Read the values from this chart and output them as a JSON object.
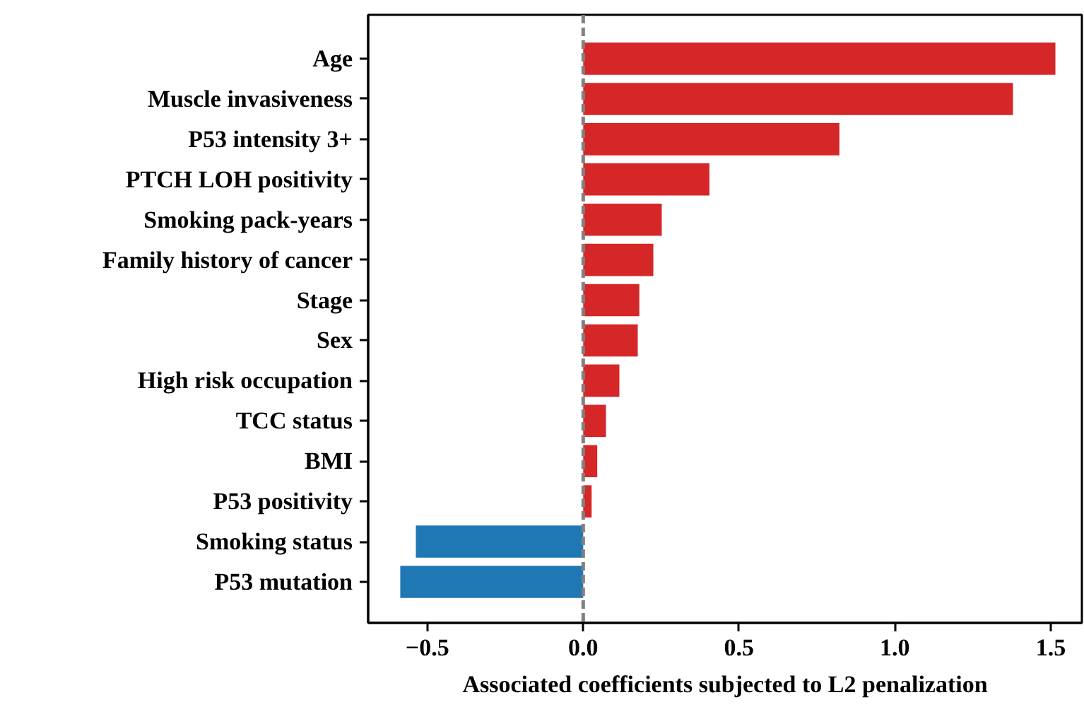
{
  "chart_data": {
    "type": "bar",
    "orientation": "horizontal",
    "xlabel": "Associated coefficients subjected to L2 penalization",
    "categories": [
      "Age",
      "Muscle invasiveness",
      "P53 intensity 3+",
      "PTCH LOH positivity",
      "Smoking pack-years",
      "Family history of cancer",
      "Stage",
      "Sex",
      "High risk occupation",
      "TCC status",
      "BMI",
      "P53 positivity",
      "Smoking status",
      "P53 mutation"
    ],
    "values": [
      1.515,
      1.379,
      0.822,
      0.405,
      0.252,
      0.225,
      0.18,
      0.175,
      0.116,
      0.073,
      0.045,
      0.027,
      -0.537,
      -0.587
    ],
    "colors": [
      "#d62728",
      "#d62728",
      "#d62728",
      "#d62728",
      "#d62728",
      "#d62728",
      "#d62728",
      "#d62728",
      "#d62728",
      "#d62728",
      "#d62728",
      "#d62728",
      "#1f77b4",
      "#1f77b4"
    ],
    "xlim": [
      -0.69,
      1.6
    ],
    "xticks": [
      {
        "value": -0.5,
        "label": "−0.5"
      },
      {
        "value": 0,
        "label": "0.0"
      },
      {
        "value": 0.5,
        "label": "0.5"
      },
      {
        "value": 1,
        "label": "1.0"
      },
      {
        "value": 1.5,
        "label": "1.5"
      }
    ],
    "ref_lines": [
      {
        "axis": "x",
        "value": 0,
        "color": "#808080",
        "line_style": "dashed"
      }
    ],
    "grid": false
  }
}
